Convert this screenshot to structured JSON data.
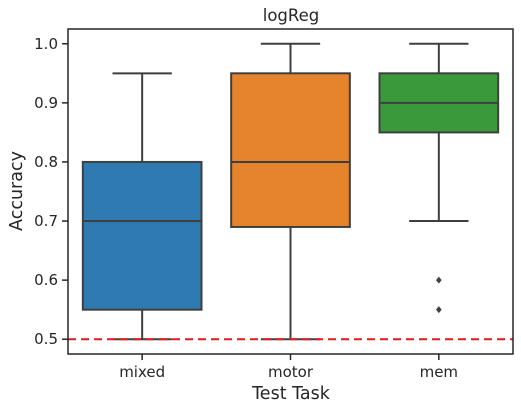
{
  "chart_data": {
    "type": "box",
    "title": "logReg",
    "xlabel": "Test Task",
    "ylabel": "Accuracy",
    "ylim": [
      0.475,
      1.025
    ],
    "yticks": [
      "0.5",
      "0.6",
      "0.7",
      "0.8",
      "0.9",
      "1.0"
    ],
    "grid": false,
    "categories": [
      "mixed",
      "motor",
      "mem"
    ],
    "boxes": [
      {
        "category": "mixed",
        "color": "#2f7ab0",
        "whisker_low": 0.5,
        "q1": 0.55,
        "median": 0.7,
        "q3": 0.8,
        "whisker_high": 0.95,
        "outliers": []
      },
      {
        "category": "motor",
        "color": "#e6832d",
        "whisker_low": 0.5,
        "q1": 0.69,
        "median": 0.8,
        "q3": 0.95,
        "whisker_high": 1.0,
        "outliers": []
      },
      {
        "category": "mem",
        "color": "#3a9a3a",
        "whisker_low": 0.7,
        "q1": 0.85,
        "median": 0.9,
        "q3": 0.95,
        "whisker_high": 1.0,
        "outliers": [
          0.6,
          0.55
        ]
      }
    ],
    "reference_line": {
      "y": 0.5,
      "color": "#e41a1c",
      "style": "dashed"
    }
  }
}
